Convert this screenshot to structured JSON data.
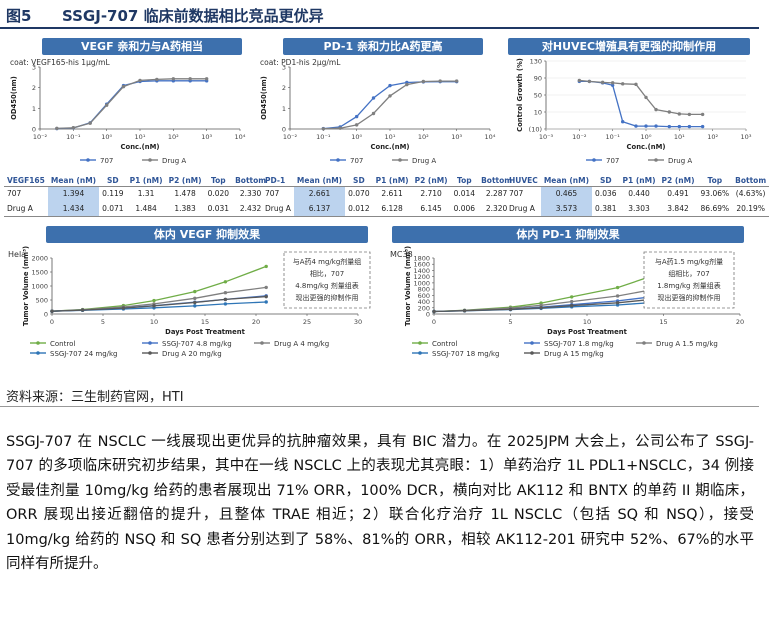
{
  "figure": {
    "label": "图5",
    "title": "SSGJ-707 临床前数据相比竞品更优异"
  },
  "panels": {
    "vegf": {
      "banner": "VEGF 亲和力与A药相当",
      "coat": "coat: VEGF165-his 1μg/mL"
    },
    "pd1": {
      "banner": "PD-1 亲和力比A药更高",
      "coat": "coat: PD1-his 2μg/mL"
    },
    "huvec": {
      "banner": "对HUVEC增殖具有更强的抑制作用"
    },
    "vivo_vegf": {
      "banner": "体内 VEGF 抑制效果"
    },
    "vivo_pd1": {
      "banner": "体内 PD-1 抑制效果"
    }
  },
  "tables": {
    "vegf": {
      "headers": [
        "VEGF165",
        "Mean (nM)",
        "SD",
        "P1 (nM)",
        "P2 (nM)",
        "Top",
        "Bottom"
      ],
      "rows": [
        [
          "707",
          "1.394",
          "0.119",
          "1.31",
          "1.478",
          "0.020",
          "2.330"
        ],
        [
          "Drug A",
          "1.434",
          "0.071",
          "1.484",
          "1.383",
          "0.031",
          "2.432"
        ]
      ]
    },
    "pd1": {
      "headers": [
        "PD-1",
        "Mean (nM)",
        "SD",
        "P1 (nM)",
        "P2 (nM)",
        "Top",
        "Bottom"
      ],
      "rows": [
        [
          "707",
          "2.661",
          "0.070",
          "2.611",
          "2.710",
          "0.014",
          "2.287"
        ],
        [
          "Drug A",
          "6.137",
          "0.012",
          "6.128",
          "6.145",
          "0.006",
          "2.320"
        ]
      ]
    },
    "huvec": {
      "headers": [
        "HUVEC",
        "Mean (nM)",
        "SD",
        "P1 (nM)",
        "P2 (nM)",
        "Top",
        "Bottom"
      ],
      "rows": [
        [
          "707",
          "0.465",
          "0.036",
          "0.440",
          "0.491",
          "93.06%",
          "(4.63%)"
        ],
        [
          "Drug A",
          "3.573",
          "0.381",
          "3.303",
          "3.842",
          "86.69%",
          "20.19%"
        ]
      ]
    }
  },
  "chart_data": [
    {
      "id": "vegf",
      "type": "line",
      "title": "",
      "xlabel": "Conc.(nM)",
      "ylabel": "OD450(nm)",
      "xscale": "log",
      "xlim": [
        0.01,
        10000
      ],
      "ylim": [
        0,
        3
      ],
      "xticks": [
        "10⁻²",
        "10⁻¹",
        "10⁰",
        "10¹",
        "10²",
        "10³",
        "10⁴"
      ],
      "yticks": [
        "0",
        "1",
        "2",
        "3"
      ],
      "series": [
        {
          "name": "707",
          "color": "#4472c4",
          "x": [
            0.032,
            0.1,
            0.32,
            1,
            3.2,
            10,
            32,
            100,
            320,
            1000
          ],
          "y": [
            0.02,
            0.05,
            0.3,
            1.2,
            2.1,
            2.3,
            2.33,
            2.33,
            2.33,
            2.33
          ]
        },
        {
          "name": "Drug A",
          "color": "#7f7f7f",
          "x": [
            0.032,
            0.1,
            0.32,
            1,
            3.2,
            10,
            32,
            100,
            320,
            1000
          ],
          "y": [
            0.03,
            0.06,
            0.28,
            1.15,
            2.05,
            2.35,
            2.4,
            2.43,
            2.43,
            2.43
          ]
        }
      ]
    },
    {
      "id": "pd1",
      "type": "line",
      "title": "",
      "xlabel": "Conc.(nM)",
      "ylabel": "OD450(nm)",
      "xscale": "log",
      "xlim": [
        0.01,
        10000
      ],
      "ylim": [
        0,
        3
      ],
      "xticks": [
        "10⁻²",
        "10⁻¹",
        "10⁰",
        "10¹",
        "10²",
        "10³",
        "10⁴"
      ],
      "yticks": [
        "0",
        "1",
        "2",
        "3"
      ],
      "series": [
        {
          "name": "707",
          "color": "#4472c4",
          "x": [
            0.1,
            0.32,
            1,
            3.2,
            10,
            32,
            100,
            320,
            1000
          ],
          "y": [
            0.02,
            0.1,
            0.6,
            1.5,
            2.1,
            2.25,
            2.28,
            2.29,
            2.29
          ]
        },
        {
          "name": "Drug A",
          "color": "#7f7f7f",
          "x": [
            0.1,
            0.32,
            1,
            3.2,
            10,
            32,
            100,
            320,
            1000
          ],
          "y": [
            0.01,
            0.04,
            0.2,
            0.75,
            1.6,
            2.15,
            2.3,
            2.32,
            2.32
          ]
        }
      ]
    },
    {
      "id": "huvec",
      "type": "line",
      "title": "",
      "xlabel": "Conc.(nM)",
      "ylabel": "Control Growth (%)",
      "xscale": "log",
      "xlim": [
        0.001,
        1000
      ],
      "ylim": [
        -10,
        130
      ],
      "xticks": [
        "10⁻³",
        "10⁻²",
        "10⁻¹",
        "10⁰",
        "10¹",
        "10²",
        "10³"
      ],
      "yticks": [
        "130",
        "90",
        "50",
        "10",
        "(10)"
      ],
      "series": [
        {
          "name": "707",
          "color": "#4472c4",
          "x": [
            0.01,
            0.02,
            0.05,
            0.1,
            0.2,
            0.5,
            1,
            2,
            5,
            10,
            20,
            50
          ],
          "y": [
            88,
            88,
            85,
            80,
            5,
            -4,
            -4,
            -4,
            -5,
            -5,
            -5,
            -5
          ]
        },
        {
          "name": "Drug A",
          "color": "#7f7f7f",
          "x": [
            0.01,
            0.02,
            0.05,
            0.1,
            0.2,
            0.5,
            1,
            2,
            5,
            10,
            20,
            50
          ],
          "y": [
            90,
            88,
            86,
            85,
            83,
            82,
            55,
            30,
            25,
            21,
            20,
            20
          ]
        }
      ]
    },
    {
      "id": "hela",
      "type": "line",
      "title": "Hela",
      "xlabel": "Days Post Treatment",
      "ylabel": "Tumor Volume (mm³)",
      "xlim": [
        0,
        30
      ],
      "ylim": [
        0,
        2000
      ],
      "xticks": [
        "0",
        "5",
        "10",
        "15",
        "20",
        "25",
        "30"
      ],
      "yticks": [
        "0",
        "500",
        "1000",
        "1500",
        "2000"
      ],
      "annotation": [
        "与A药4 mg/kg剂量组",
        "相比，707",
        "4.8mg/kg 剂量组表",
        "现出更强的抑制作用"
      ],
      "series": [
        {
          "name": "Control",
          "color": "#70ad47",
          "x": [
            0,
            3,
            7,
            10,
            14,
            17,
            21
          ],
          "y": [
            100,
            160,
            300,
            480,
            800,
            1150,
            1700
          ]
        },
        {
          "name": "SSGJ-707 4.8 mg/kg",
          "color": "#4472c4",
          "x": [
            0,
            3,
            7,
            10,
            14,
            17,
            21
          ],
          "y": [
            100,
            140,
            220,
            300,
            420,
            520,
            650
          ]
        },
        {
          "name": "Drug A 4 mg/kg",
          "color": "#7f7f7f",
          "x": [
            0,
            3,
            7,
            10,
            14,
            17,
            21
          ],
          "y": [
            100,
            150,
            250,
            360,
            560,
            760,
            950
          ]
        },
        {
          "name": "SSGJ-707 24 mg/kg",
          "color": "#2e75b6",
          "x": [
            0,
            3,
            7,
            10,
            14,
            17,
            21
          ],
          "y": [
            100,
            130,
            180,
            220,
            290,
            360,
            430
          ]
        },
        {
          "name": "Drug A 20 mg/kg",
          "color": "#595959",
          "x": [
            0,
            3,
            7,
            10,
            14,
            17,
            21
          ],
          "y": [
            100,
            140,
            210,
            290,
            410,
            520,
            620
          ]
        }
      ]
    },
    {
      "id": "mc38",
      "type": "line",
      "title": "MC38",
      "xlabel": "Days Post Treatment",
      "ylabel": "Tumor Volume (mm³)",
      "xlim": [
        0,
        20
      ],
      "ylim": [
        0,
        1800
      ],
      "xticks": [
        "0",
        "5",
        "10",
        "15",
        "20"
      ],
      "yticks": [
        "0",
        "200",
        "400",
        "600",
        "800",
        "1000",
        "1200",
        "1400",
        "1600",
        "1800"
      ],
      "annotation": [
        "与A药1.5 mg/kg剂量",
        "组相比，707",
        "1.8mg/kg 剂量组表",
        "现出更强的抑制作用"
      ],
      "series": [
        {
          "name": "Control",
          "color": "#70ad47",
          "x": [
            0,
            2,
            5,
            7,
            9,
            12,
            14
          ],
          "y": [
            80,
            120,
            220,
            350,
            550,
            850,
            1180
          ]
        },
        {
          "name": "SSGJ-707 1.8 mg/kg",
          "color": "#4472c4",
          "x": [
            0,
            2,
            5,
            7,
            9,
            12,
            14
          ],
          "y": [
            80,
            110,
            160,
            220,
            300,
            420,
            540
          ]
        },
        {
          "name": "Drug A 1.5 mg/kg",
          "color": "#7f7f7f",
          "x": [
            0,
            2,
            5,
            7,
            9,
            12,
            14
          ],
          "y": [
            80,
            115,
            190,
            280,
            400,
            580,
            760
          ]
        },
        {
          "name": "SSGJ-707 18 mg/kg",
          "color": "#2e75b6",
          "x": [
            0,
            2,
            5,
            7,
            9,
            12,
            14
          ],
          "y": [
            80,
            100,
            140,
            180,
            230,
            290,
            360
          ]
        },
        {
          "name": "Drug A 15 mg/kg",
          "color": "#595959",
          "x": [
            0,
            2,
            5,
            7,
            9,
            12,
            14
          ],
          "y": [
            80,
            105,
            150,
            200,
            270,
            360,
            460
          ]
        }
      ]
    }
  ],
  "source": "资料来源：三生制药官网，HTI",
  "paragraph": "SSGJ-707 在 NSCLC 一线展现出更优异的抗肿瘤效果，具有 BIC 潜力。在 2025JPM 大会上，公司公布了 SSGJ-707 的多项临床研究初步结果，其中在一线 NSCLC 上的表现尤其亮眼：1）单药治疗 1L PDL1+NSCLC，34 例接受最佳剂量 10mg/kg 给药的患者展现出 71% ORR，100% DCR，横向对比 AK112 和 BNTX 的单药 II 期临床，ORR 展现出接近翻倍的提升，且整体 TRAE 相近；2）联合化疗治疗 1L NSCLC（包括 SQ 和 NSQ），接受 10mg/kg 给药的 NSQ 和 SQ 患者分别达到了 58%、81%的 ORR，相较 AK112-201 研究中 52%、67%的水平同样有所提升。"
}
